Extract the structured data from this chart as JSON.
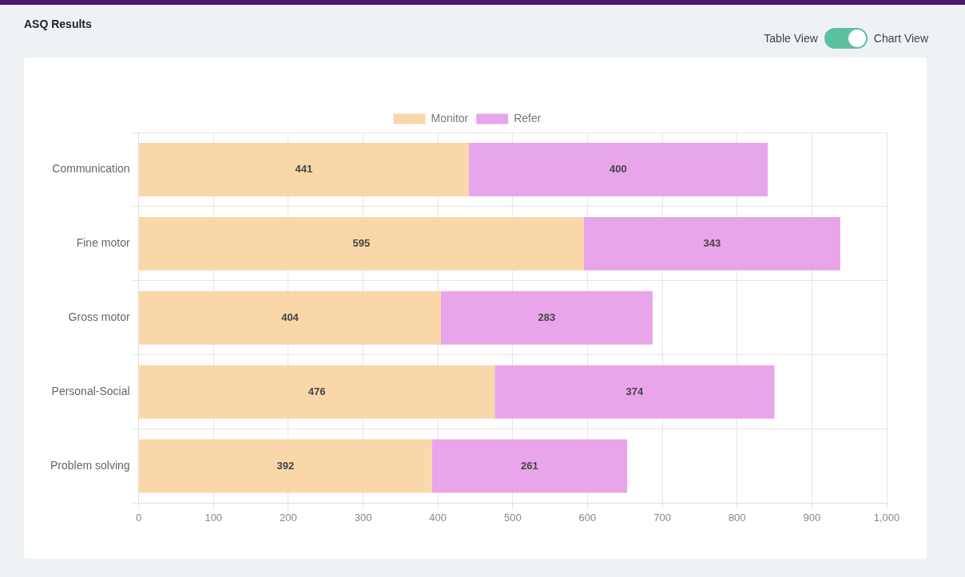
{
  "chart_data": {
    "type": "bar",
    "title": "ASQ Results",
    "orientation": "horizontal",
    "stacked": true,
    "categories": [
      "Communication",
      "Fine motor",
      "Gross motor",
      "Personal-Social",
      "Problem solving"
    ],
    "series": [
      {
        "name": "Monitor",
        "color": "#fad7a8",
        "values": [
          441,
          595,
          404,
          476,
          392
        ]
      },
      {
        "name": "Refer",
        "color": "#e8a5ea",
        "values": [
          400,
          343,
          283,
          374,
          261
        ]
      }
    ],
    "xlim": [
      0,
      1000
    ],
    "xticks": [
      0,
      100,
      200,
      300,
      400,
      500,
      600,
      700,
      800,
      900,
      {
        "value": 1000,
        "label": "1,000"
      }
    ],
    "grid": true,
    "legend": "top",
    "data_labels": true,
    "annotations": [
      "Table View",
      "Chart View"
    ]
  }
}
